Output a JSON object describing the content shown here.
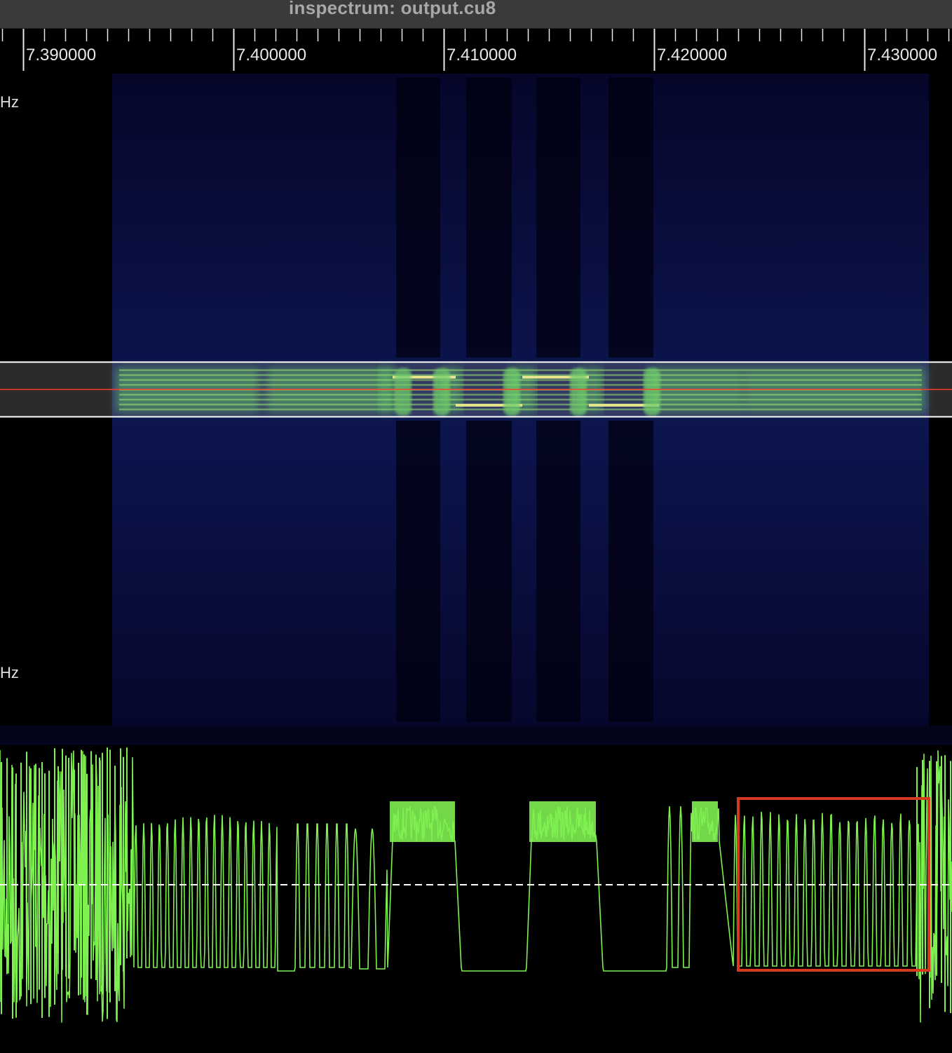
{
  "window": {
    "title": "inspectrum: output.cu8"
  },
  "time_axis": {
    "labels": [
      "7.390000",
      "7.400000",
      "7.410000",
      "7.420000",
      "7.430000"
    ]
  },
  "freq_labels": {
    "upper": "Hz",
    "lower": "Hz"
  },
  "colors": {
    "background": "#000000",
    "spectrogram_low": "#0a0a3a",
    "spectrogram_mid": "#1e6e8a",
    "spectrogram_high": "#8ef05a",
    "trace": "#7ef050",
    "selection_box": "#d63a1e",
    "cursor_line": "#ff3b2a",
    "band_line": "#ffffff"
  },
  "plot": {
    "type": "amplitude trace (frequency demod)"
  }
}
